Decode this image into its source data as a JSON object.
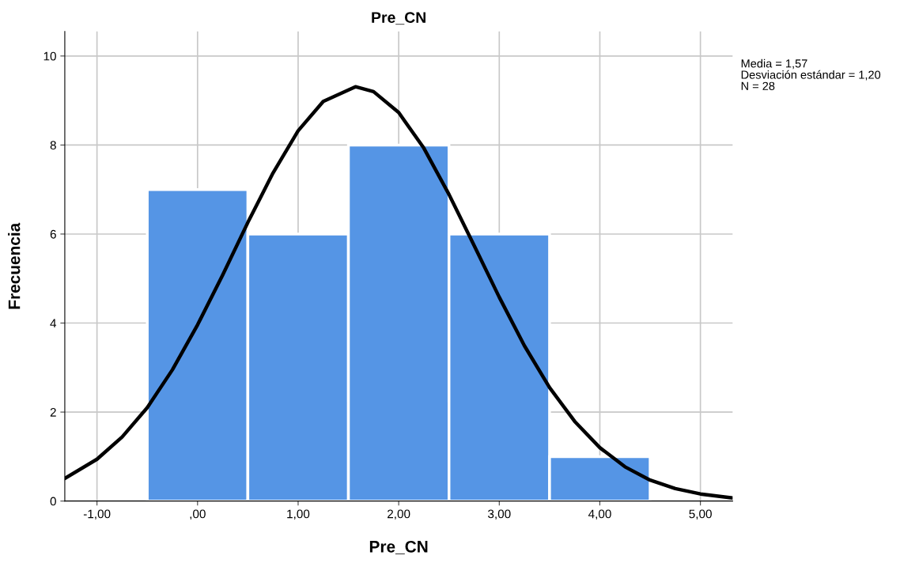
{
  "chart_data": {
    "type": "histogram",
    "title": "Pre_CN",
    "xlabel": "Pre_CN",
    "ylabel": "Frecuencia",
    "bins": [
      -0.5,
      0.5,
      1.5,
      2.5,
      3.5,
      4.5
    ],
    "values": [
      7,
      6,
      8,
      6,
      1
    ],
    "color": "#5595e5",
    "series": [
      {
        "type": "line",
        "color": "#000000",
        "x": [
          -1.32,
          -1.0,
          -0.75,
          -0.5,
          -0.25,
          0.0,
          0.25,
          0.5,
          0.75,
          1.0,
          1.25,
          1.57,
          1.75,
          2.0,
          2.25,
          2.5,
          2.75,
          3.0,
          3.25,
          3.5,
          3.75,
          4.0,
          4.25,
          4.5,
          4.75,
          5.0,
          5.32
        ],
        "values": [
          0.51,
          0.94,
          1.44,
          2.1,
          2.95,
          3.96,
          5.08,
          6.26,
          7.37,
          8.32,
          8.98,
          9.31,
          9.2,
          8.73,
          7.93,
          6.89,
          5.74,
          4.58,
          3.49,
          2.55,
          1.79,
          1.2,
          0.77,
          0.47,
          0.28,
          0.16,
          0.07
        ]
      }
    ],
    "xlim": [
      -1.32,
      5.32
    ],
    "xticks": [
      {
        "value": -1,
        "label": "-1,00"
      },
      {
        "value": 0,
        "label": ",00"
      },
      {
        "value": 1,
        "label": "1,00"
      },
      {
        "value": 2,
        "label": "2,00"
      },
      {
        "value": 3,
        "label": "3,00"
      },
      {
        "value": 4,
        "label": "4,00"
      },
      {
        "value": 5,
        "label": "5,00"
      }
    ],
    "ylim": [
      0,
      10.55
    ],
    "yticks": [
      0,
      2,
      4,
      6,
      8,
      10
    ],
    "grid": true,
    "annotations": [
      "Media = 1,57",
      "Desviación estándar = 1,20",
      "N = 28"
    ]
  }
}
